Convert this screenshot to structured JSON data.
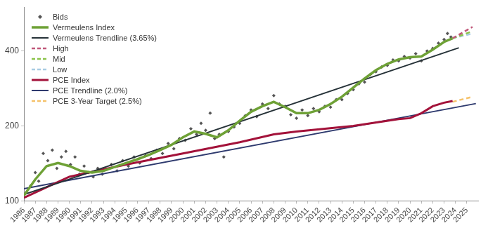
{
  "chart_data": {
    "type": "line",
    "log": "y",
    "grid": false,
    "legend": "upper left",
    "xlim": [
      1986,
      2026
    ],
    "xticks": [
      1986,
      1987,
      1988,
      1989,
      1990,
      1991,
      1992,
      1993,
      1994,
      1995,
      1996,
      1997,
      1998,
      1999,
      2000,
      2001,
      2002,
      2003,
      2004,
      2005,
      2006,
      2007,
      2008,
      2009,
      2010,
      2011,
      2012,
      2013,
      2014,
      2015,
      2016,
      2017,
      2018,
      2019,
      2020,
      2021,
      2022,
      2023,
      2024,
      2025
    ],
    "ylim": [
      100,
      600
    ],
    "yticks": [
      100,
      200,
      400
    ],
    "series": [
      {
        "name": "Bids",
        "type": "scatter",
        "marker": "diamond",
        "color": "#555555",
        "x": [
          1986.2,
          1986.6,
          1987.0,
          1987.3,
          1987.7,
          1988.1,
          1988.5,
          1988.9,
          1989.3,
          1989.7,
          1990.1,
          1990.5,
          1990.9,
          1991.3,
          1991.7,
          1992.1,
          1992.5,
          1992.9,
          1993.3,
          1993.7,
          1994.2,
          1994.7,
          1995.2,
          1995.7,
          1996.2,
          1996.7,
          1997.2,
          1997.7,
          1998.2,
          1998.7,
          1999.2,
          1999.7,
          2000.2,
          2000.7,
          2001.2,
          2001.6,
          2002.0,
          2002.4,
          2002.8,
          2003.2,
          2003.6,
          2004.0,
          2004.5,
          2005.0,
          2005.5,
          2006.0,
          2006.5,
          2007.0,
          2007.5,
          2008.0,
          2008.5,
          2009.0,
          2009.5,
          2010.0,
          2010.5,
          2011.0,
          2011.5,
          2012.0,
          2012.5,
          2013.0,
          2013.5,
          2014.0,
          2014.5,
          2015.0,
          2015.5,
          2016.0,
          2016.5,
          2017.0,
          2017.5,
          2018.0,
          2018.5,
          2019.0,
          2019.5,
          2020.0,
          2020.5,
          2021.0,
          2021.5,
          2022.0,
          2022.5,
          2023.0,
          2023.3,
          2023.6
        ],
        "values": [
          108,
          115,
          130,
          120,
          155,
          145,
          160,
          135,
          150,
          158,
          140,
          150,
          128,
          138,
          130,
          125,
          135,
          128,
          134,
          140,
          132,
          145,
          138,
          150,
          142,
          152,
          148,
          160,
          155,
          170,
          162,
          178,
          175,
          195,
          185,
          205,
          192,
          225,
          178,
          185,
          150,
          190,
          198,
          205,
          220,
          232,
          218,
          245,
          235,
          265,
          245,
          240,
          222,
          215,
          232,
          220,
          235,
          228,
          240,
          238,
          255,
          255,
          270,
          280,
          295,
          300,
          322,
          330,
          345,
          350,
          368,
          365,
          380,
          375,
          390,
          365,
          400,
          410,
          430,
          445,
          470,
          455
        ]
      },
      {
        "name": "Vermeulens Index",
        "type": "line",
        "marker": "none",
        "line_style": "solid",
        "color": "#6ea136",
        "x": [
          1986,
          1987,
          1988,
          1989,
          1990,
          1991,
          1992,
          1993,
          1994,
          1995,
          1996,
          1997,
          1998,
          1999,
          2000,
          2001,
          2002,
          2003,
          2004,
          2005,
          2006,
          2007,
          2008,
          2009,
          2010,
          2011,
          2012,
          2013,
          2014,
          2015,
          2016,
          2017,
          2018,
          2019,
          2020,
          2021,
          2022,
          2023,
          2023.75
        ],
        "values": [
          105,
          122,
          138,
          142,
          138,
          132,
          130,
          132,
          137,
          142,
          147,
          153,
          160,
          168,
          180,
          190,
          186,
          180,
          192,
          210,
          228,
          240,
          250,
          238,
          225,
          225,
          232,
          245,
          262,
          285,
          310,
          335,
          355,
          370,
          378,
          380,
          405,
          435,
          450
        ]
      },
      {
        "name": "Vermeulens Trendline (3.65%)",
        "type": "line",
        "marker": "none",
        "line_style": "solid",
        "color": "#263238",
        "x": [
          1986,
          2024.3
        ],
        "values": [
          106,
          412
        ]
      },
      {
        "name": "High",
        "type": "line",
        "marker": "none",
        "line_style": "dashed",
        "color": "#c0587a",
        "x": [
          2023.75,
          2025.5
        ],
        "values": [
          450,
          500
        ]
      },
      {
        "name": "Mid",
        "type": "line",
        "marker": "none",
        "line_style": "dashed",
        "color": "#8bc34a",
        "x": [
          2023.75,
          2025.5
        ],
        "values": [
          450,
          480
        ]
      },
      {
        "name": "Low",
        "type": "line",
        "marker": "none",
        "line_style": "dashed",
        "color": "#a9cce3",
        "x": [
          2023.75,
          2025.5
        ],
        "values": [
          450,
          470
        ]
      },
      {
        "name": "PCE Index",
        "type": "line",
        "marker": "none",
        "line_style": "solid",
        "color": "#a3123a",
        "x": [
          1986,
          1990,
          1995,
          2000,
          2005,
          2008,
          2010,
          2015,
          2019,
          2020,
          2021,
          2022,
          2023,
          2023.75
        ],
        "values": [
          103,
          125,
          140,
          155,
          172,
          185,
          190,
          200,
          213,
          215,
          225,
          240,
          248,
          252
        ]
      },
      {
        "name": "PCE Trendline (2.0%)",
        "type": "line",
        "marker": "none",
        "line_style": "solid",
        "color": "#2e3a6e",
        "x": [
          1986,
          2025.8
        ],
        "values": [
          112,
          246
        ]
      },
      {
        "name": "PCE 3-Year Target (2.5%)",
        "type": "line",
        "marker": "none",
        "line_style": "dashed",
        "color": "#f5c26b",
        "x": [
          2023.75,
          2025.5
        ],
        "values": [
          250,
          262
        ]
      }
    ]
  }
}
